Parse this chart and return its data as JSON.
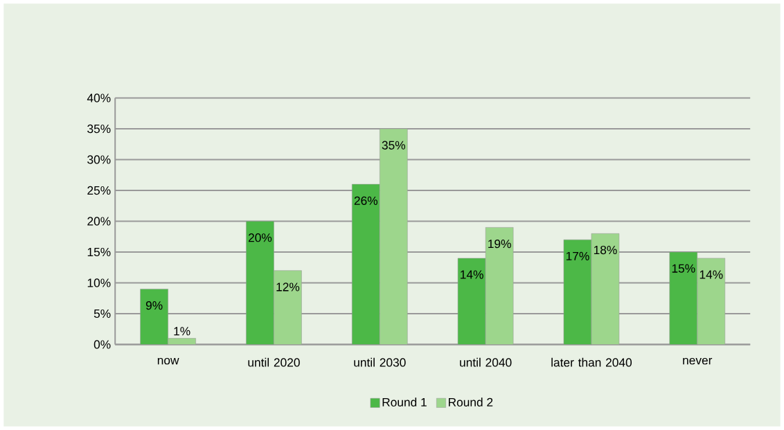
{
  "chart_data": {
    "type": "bar",
    "categories": [
      "now",
      "until 2020",
      "until 2030",
      "until 2040",
      "later than 2040",
      "never"
    ],
    "series": [
      {
        "name": "Round 1",
        "color": "#4cb847",
        "values": [
          9,
          20,
          26,
          14,
          17,
          15
        ],
        "value_labels": [
          "9%",
          "20%",
          "26%",
          "14%",
          "17%",
          "15%"
        ]
      },
      {
        "name": "Round 2",
        "color": "#9dd68c",
        "values": [
          1,
          12,
          35,
          19,
          18,
          14
        ],
        "value_labels": [
          "1%",
          "12%",
          "35%",
          "19%",
          "18%",
          "14%"
        ]
      }
    ],
    "ylim": [
      0,
      40
    ],
    "yticks": [
      {
        "value": 0,
        "label": "0%"
      },
      {
        "value": 5,
        "label": "5%"
      },
      {
        "value": 10,
        "label": "10%"
      },
      {
        "value": 15,
        "label": "15%"
      },
      {
        "value": 20,
        "label": "20%"
      },
      {
        "value": 25,
        "label": "25%"
      },
      {
        "value": 30,
        "label": "30%"
      },
      {
        "value": 35,
        "label": "35%"
      },
      {
        "value": 40,
        "label": "40%"
      }
    ],
    "grid": "y",
    "legend": "bottom"
  }
}
